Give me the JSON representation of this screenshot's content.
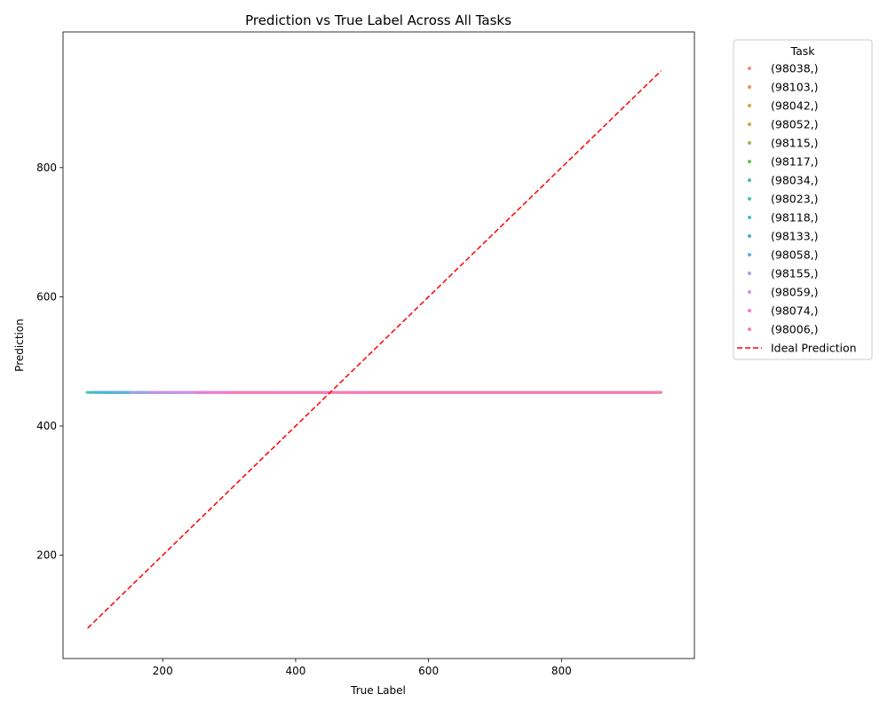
{
  "chart_data": {
    "type": "scatter",
    "title": "Prediction vs True Label Across All Tasks",
    "xlabel": "True Label",
    "ylabel": "Prediction",
    "xlim": [
      50,
      1000
    ],
    "ylim": [
      40,
      1010
    ],
    "xticks": [
      200,
      400,
      600,
      800
    ],
    "yticks": [
      200,
      400,
      600,
      800
    ],
    "grid": false,
    "legend": {
      "title": "Task",
      "placement": "outside-right-top"
    },
    "constant_prediction": 452,
    "series": [
      {
        "name": "(98038,)",
        "color": "#f08a8a",
        "x_range": [
          300,
          950
        ]
      },
      {
        "name": "(98103,)",
        "color": "#e9925a",
        "x_range": [
          300,
          950
        ]
      },
      {
        "name": "(98042,)",
        "color": "#d4a24a",
        "x_range": [
          250,
          950
        ]
      },
      {
        "name": "(98052,)",
        "color": "#c8a84a",
        "x_range": [
          250,
          950
        ]
      },
      {
        "name": "(98115,)",
        "color": "#a8b248",
        "x_range": [
          115,
          300
        ]
      },
      {
        "name": "(98117,)",
        "color": "#6cbf4d",
        "x_range": [
          110,
          260
        ]
      },
      {
        "name": "(98034,)",
        "color": "#4fbf93",
        "x_range": [
          90,
          240
        ]
      },
      {
        "name": "(98023,)",
        "color": "#4dbfae",
        "x_range": [
          85,
          220
        ]
      },
      {
        "name": "(98118,)",
        "color": "#4cbac6",
        "x_range": [
          90,
          230
        ]
      },
      {
        "name": "(98133,)",
        "color": "#4bb1d6",
        "x_range": [
          100,
          240
        ]
      },
      {
        "name": "(98058,)",
        "color": "#5faee0",
        "x_range": [
          120,
          260
        ]
      },
      {
        "name": "(98155,)",
        "color": "#a9a0ec",
        "x_range": [
          150,
          300
        ]
      },
      {
        "name": "(98059,)",
        "color": "#d48ee8",
        "x_range": [
          180,
          500
        ]
      },
      {
        "name": "(98074,)",
        "color": "#f07ad8",
        "x_range": [
          250,
          950
        ]
      },
      {
        "name": "(98006,)",
        "color": "#f27fb8",
        "x_range": [
          300,
          950
        ]
      }
    ],
    "ideal_line": {
      "name": "Ideal Prediction",
      "color": "#ff0000",
      "x": [
        87,
        950
      ],
      "y": [
        87,
        950
      ]
    }
  }
}
